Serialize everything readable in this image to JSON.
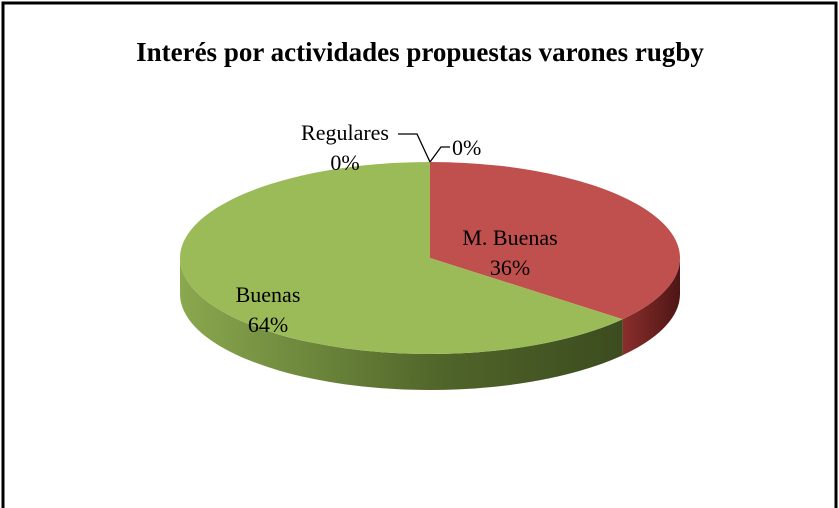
{
  "chart_data": {
    "type": "pie",
    "title": "Interés por actividades propuestas varones rugby",
    "categories": [
      "M. Buenas",
      "Buenas",
      "Regulares",
      null
    ],
    "values": [
      36,
      64,
      0,
      0
    ],
    "value_labels": [
      "36%",
      "64%",
      "0%",
      "0%"
    ],
    "colors": [
      "#c0504d",
      "#9bbb59",
      "#4f81bd",
      "#8064a2"
    ]
  }
}
